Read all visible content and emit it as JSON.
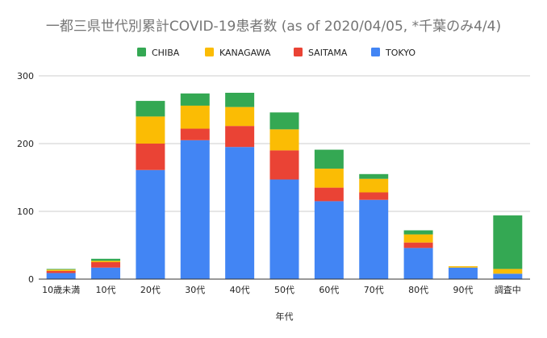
{
  "chart_data": {
    "type": "bar",
    "stacked": true,
    "title": "一都三県世代別累計COVID-19患者数 (as of 2020/04/05, *千葉のみ4/4)",
    "xlabel": "年代",
    "ylabel": "",
    "ylim": [
      0,
      300
    ],
    "yticks": [
      0,
      100,
      200,
      300
    ],
    "grid": true,
    "legend_position": "top",
    "categories": [
      "10歳未満",
      "10代",
      "20代",
      "30代",
      "40代",
      "50代",
      "60代",
      "70代",
      "80代",
      "90代",
      "調査中"
    ],
    "series": [
      {
        "name": "TOKYO",
        "color": "#4285f4",
        "values": [
          9,
          17,
          161,
          205,
          195,
          147,
          115,
          117,
          46,
          17,
          8
        ]
      },
      {
        "name": "SAITAMA",
        "color": "#ea4335",
        "values": [
          3,
          8,
          39,
          17,
          31,
          43,
          20,
          11,
          8,
          0,
          0
        ]
      },
      {
        "name": "KANAGAWA",
        "color": "#fbbc04",
        "values": [
          2,
          2,
          40,
          34,
          28,
          31,
          28,
          20,
          12,
          2,
          7
        ]
      },
      {
        "name": "CHIBA",
        "color": "#34a853",
        "values": [
          1,
          3,
          23,
          18,
          21,
          25,
          28,
          7,
          6,
          0,
          79
        ]
      }
    ],
    "legend_order": [
      "CHIBA",
      "KANAGAWA",
      "SAITAMA",
      "TOKYO"
    ]
  }
}
